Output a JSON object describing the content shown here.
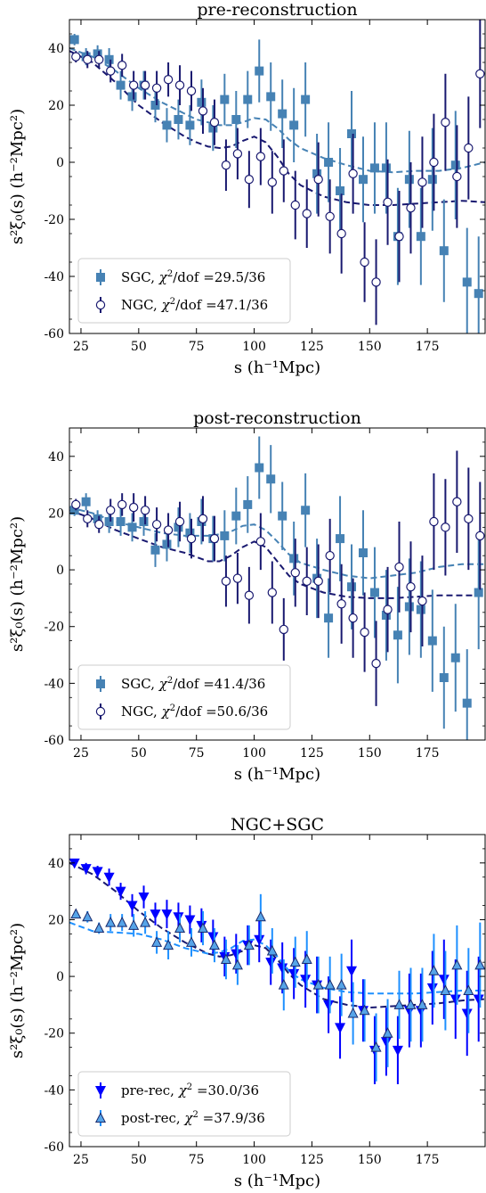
{
  "chart_data": [
    {
      "type": "scatter",
      "title": "pre-reconstruction",
      "xlabel": "s (h⁻¹Mpc)",
      "ylabel": "s²ξ₀(s) (h⁻²Mpc²)",
      "xlim": [
        20,
        200
      ],
      "ylim": [
        -60,
        50
      ],
      "xticks": [
        25,
        50,
        75,
        100,
        125,
        150,
        175
      ],
      "yticks": [
        -60,
        -40,
        -20,
        0,
        20,
        40
      ],
      "legend_position": "lower-left",
      "series": [
        {
          "name": "SGC",
          "label_tail": "29.5/36",
          "color": "#4682b4",
          "marker": "square",
          "fill": "#4682b4",
          "x": [
            22.5,
            27.5,
            32.5,
            37.5,
            42.5,
            47.5,
            52.5,
            57.5,
            62.5,
            67.5,
            72.5,
            77.5,
            82.5,
            87.5,
            92.5,
            97.5,
            102.5,
            107.5,
            112.5,
            117.5,
            122.5,
            127.5,
            132.5,
            137.5,
            142.5,
            147.5,
            152.5,
            157.5,
            162.5,
            167.5,
            172.5,
            177.5,
            182.5,
            187.5,
            192.5,
            197.5
          ],
          "y": [
            43,
            37,
            38,
            36,
            27,
            23,
            27,
            20,
            13,
            15,
            13,
            21,
            12,
            22,
            15,
            22,
            32,
            23,
            17,
            13,
            22,
            -4,
            0,
            -10,
            10,
            -6,
            -2,
            -2,
            -26,
            -6,
            -26,
            -6,
            -31,
            -1,
            -42,
            -46
          ],
          "err": [
            2,
            3,
            3,
            4,
            5,
            5,
            5,
            6,
            6,
            7,
            7,
            8,
            8,
            9,
            10,
            10,
            11,
            12,
            12,
            13,
            13,
            14,
            14,
            15,
            15,
            15,
            16,
            16,
            17,
            17,
            17,
            18,
            18,
            19,
            19,
            20
          ]
        },
        {
          "name": "NGC",
          "label_tail": "47.1/36",
          "color": "#191970",
          "marker": "circle",
          "fill": "#ffffff",
          "x": [
            22.5,
            27.5,
            32.5,
            37.5,
            42.5,
            47.5,
            52.5,
            57.5,
            62.5,
            67.5,
            72.5,
            77.5,
            82.5,
            87.5,
            92.5,
            97.5,
            102.5,
            107.5,
            112.5,
            117.5,
            122.5,
            127.5,
            132.5,
            137.5,
            142.5,
            147.5,
            152.5,
            157.5,
            162.5,
            167.5,
            172.5,
            177.5,
            182.5,
            187.5,
            192.5,
            197.5
          ],
          "y": [
            37,
            36,
            36,
            32,
            34,
            27,
            27,
            26,
            29,
            27,
            25,
            18,
            14,
            -1,
            3,
            -6,
            2,
            -7,
            -3,
            -15,
            -18,
            -6,
            -19,
            -25,
            -4,
            -35,
            -42,
            -14,
            -26,
            -16,
            -7,
            0,
            14,
            -5,
            5,
            31
          ],
          "err": [
            2,
            3,
            3,
            4,
            4,
            5,
            5,
            6,
            6,
            7,
            7,
            8,
            8,
            9,
            9,
            10,
            10,
            11,
            11,
            12,
            12,
            13,
            13,
            14,
            14,
            14,
            15,
            15,
            16,
            16,
            16,
            17,
            17,
            18,
            18,
            19
          ]
        }
      ],
      "fits": [
        {
          "name": "SGC model",
          "color": "#4682b4",
          "x": [
            20,
            30,
            40,
            50,
            60,
            70,
            75,
            80,
            85,
            90,
            95,
            100,
            105,
            110,
            115,
            120,
            130,
            140,
            150,
            160,
            170,
            180,
            190,
            200
          ],
          "y": [
            40,
            37,
            32,
            26,
            21,
            17,
            15,
            14,
            13,
            13,
            14,
            15.5,
            15,
            12,
            8,
            5,
            1.5,
            -1,
            -3,
            -3.5,
            -3,
            -3,
            -2,
            0
          ]
        },
        {
          "name": "NGC model",
          "color": "#191970",
          "x": [
            20,
            30,
            40,
            50,
            60,
            70,
            75,
            80,
            85,
            90,
            95,
            100,
            105,
            110,
            115,
            120,
            130,
            140,
            150,
            160,
            170,
            180,
            190,
            200
          ],
          "y": [
            39,
            35,
            28,
            20,
            14,
            9,
            7,
            5.5,
            5,
            5.5,
            7.5,
            9,
            7,
            2,
            -4,
            -8,
            -12,
            -14,
            -15,
            -15,
            -14.5,
            -14,
            -13.5,
            -14
          ]
        }
      ]
    },
    {
      "type": "scatter",
      "title": "post-reconstruction",
      "xlabel": "s (h⁻¹Mpc)",
      "ylabel": "s²ξ₀(s) (h⁻²Mpc²)",
      "xlim": [
        20,
        200
      ],
      "ylim": [
        -60,
        50
      ],
      "xticks": [
        25,
        50,
        75,
        100,
        125,
        150,
        175
      ],
      "yticks": [
        -60,
        -40,
        -20,
        0,
        20,
        40
      ],
      "legend_position": "lower-left",
      "series": [
        {
          "name": "SGC",
          "label_tail": "41.4/36",
          "color": "#4682b4",
          "marker": "square",
          "fill": "#4682b4",
          "x": [
            22.5,
            27.5,
            32.5,
            37.5,
            42.5,
            47.5,
            52.5,
            57.5,
            62.5,
            67.5,
            72.5,
            77.5,
            82.5,
            87.5,
            92.5,
            97.5,
            102.5,
            107.5,
            112.5,
            117.5,
            122.5,
            127.5,
            132.5,
            137.5,
            142.5,
            147.5,
            152.5,
            157.5,
            162.5,
            167.5,
            172.5,
            177.5,
            182.5,
            187.5,
            192.5,
            197.5
          ],
          "y": [
            21,
            24,
            18,
            17,
            17,
            15,
            17,
            7,
            9,
            15,
            13,
            17,
            11,
            12,
            19,
            23,
            36,
            32,
            19,
            4,
            21,
            -3,
            -17,
            11,
            -6,
            6,
            -8,
            -16,
            -23,
            -13,
            -14,
            -25,
            -38,
            -31,
            -47,
            -8
          ],
          "err": [
            2,
            3,
            3,
            4,
            5,
            5,
            5,
            6,
            6,
            7,
            7,
            8,
            8,
            9,
            10,
            10,
            11,
            12,
            12,
            13,
            13,
            14,
            14,
            15,
            15,
            15,
            16,
            16,
            17,
            17,
            17,
            18,
            18,
            19,
            19,
            20
          ]
        },
        {
          "name": "NGC",
          "label_tail": "50.6/36",
          "color": "#191970",
          "marker": "circle",
          "fill": "#ffffff",
          "x": [
            22.5,
            27.5,
            32.5,
            37.5,
            42.5,
            47.5,
            52.5,
            57.5,
            62.5,
            67.5,
            72.5,
            77.5,
            82.5,
            87.5,
            92.5,
            97.5,
            102.5,
            107.5,
            112.5,
            117.5,
            122.5,
            127.5,
            132.5,
            137.5,
            142.5,
            147.5,
            152.5,
            157.5,
            162.5,
            167.5,
            172.5,
            177.5,
            182.5,
            187.5,
            192.5,
            197.5
          ],
          "y": [
            23,
            18,
            16,
            21,
            23,
            22,
            21,
            16,
            14,
            17,
            11,
            18,
            11,
            -4,
            -3,
            -9,
            10,
            -8,
            -21,
            -1,
            -4,
            -4,
            5,
            -12,
            -17,
            -22,
            -33,
            -14,
            1,
            -6,
            -11,
            17,
            15,
            24,
            18,
            12
          ],
          "err": [
            2,
            3,
            3,
            4,
            4,
            5,
            5,
            6,
            6,
            7,
            7,
            8,
            8,
            9,
            9,
            10,
            10,
            11,
            11,
            12,
            12,
            13,
            13,
            14,
            14,
            14,
            15,
            15,
            16,
            16,
            16,
            17,
            17,
            18,
            18,
            19
          ]
        }
      ],
      "fits": [
        {
          "name": "SGC model",
          "color": "#4682b4",
          "x": [
            20,
            30,
            40,
            50,
            60,
            70,
            80,
            85,
            90,
            95,
            100,
            105,
            110,
            115,
            120,
            130,
            140,
            150,
            160,
            170,
            180,
            190,
            200
          ],
          "y": [
            22,
            20,
            17,
            15,
            13,
            12,
            12,
            12.5,
            13.5,
            15.5,
            16,
            14,
            10,
            5.5,
            2.5,
            0,
            -2,
            -3,
            -2,
            -1,
            1,
            2,
            2
          ]
        },
        {
          "name": "NGC model",
          "color": "#191970",
          "x": [
            20,
            30,
            40,
            50,
            60,
            70,
            80,
            85,
            90,
            95,
            100,
            105,
            110,
            115,
            120,
            130,
            140,
            150,
            160,
            170,
            180,
            190,
            200
          ],
          "y": [
            21,
            18,
            14,
            11,
            8,
            6,
            3,
            3,
            5,
            8,
            10,
            8,
            3,
            -2,
            -5,
            -8,
            -9.5,
            -10,
            -10,
            -9.5,
            -9,
            -9,
            -9
          ]
        }
      ]
    },
    {
      "type": "scatter",
      "title": "NGC+SGC",
      "xlabel": "s (h⁻¹Mpc)",
      "ylabel": "s²ξ₀(s) (h⁻²Mpc²)",
      "xlim": [
        20,
        200
      ],
      "ylim": [
        -60,
        50
      ],
      "xticks": [
        25,
        50,
        75,
        100,
        125,
        150,
        175
      ],
      "yticks": [
        -60,
        -40,
        -20,
        0,
        20,
        40
      ],
      "legend_position": "lower-left",
      "series": [
        {
          "name": "pre-rec",
          "label_tail": "30.0/36",
          "color": "#0000ff",
          "marker": "triangle-down",
          "fill": "#0000ff",
          "stroke": "#0000ff",
          "x": [
            22.5,
            27.5,
            32.5,
            37.5,
            42.5,
            47.5,
            52.5,
            57.5,
            62.5,
            67.5,
            72.5,
            77.5,
            82.5,
            87.5,
            92.5,
            97.5,
            102.5,
            107.5,
            112.5,
            117.5,
            122.5,
            127.5,
            132.5,
            137.5,
            142.5,
            147.5,
            152.5,
            157.5,
            162.5,
            167.5,
            172.5,
            177.5,
            182.5,
            187.5,
            192.5,
            197.5
          ],
          "y": [
            40,
            38,
            37,
            35,
            30,
            25,
            28,
            22,
            22,
            21,
            20,
            18,
            14,
            7,
            8,
            11,
            13,
            5,
            3,
            1,
            -1,
            -3,
            -10,
            -18,
            2,
            -12,
            -26,
            -23,
            -26,
            -12,
            -12,
            -4,
            -1,
            -8,
            -13,
            -8
          ],
          "err": [
            1.5,
            2,
            2,
            3,
            3,
            4,
            4,
            4,
            5,
            5,
            5,
            6,
            6,
            7,
            7,
            7,
            8,
            8,
            9,
            9,
            10,
            10,
            10,
            11,
            11,
            11,
            12,
            12,
            12,
            13,
            13,
            13,
            14,
            14,
            15,
            15
          ]
        },
        {
          "name": "post-rec",
          "label_tail": "37.9/36",
          "color": "#1e90ff",
          "marker": "triangle-up",
          "fill": "#56a4e8",
          "stroke": "#1a2a6c",
          "x": [
            22.5,
            27.5,
            32.5,
            37.5,
            42.5,
            47.5,
            52.5,
            57.5,
            62.5,
            67.5,
            72.5,
            77.5,
            82.5,
            87.5,
            92.5,
            97.5,
            102.5,
            107.5,
            112.5,
            117.5,
            122.5,
            127.5,
            132.5,
            137.5,
            142.5,
            147.5,
            152.5,
            157.5,
            162.5,
            167.5,
            172.5,
            177.5,
            182.5,
            187.5,
            192.5,
            197.5
          ],
          "y": [
            22,
            21,
            17,
            19,
            19,
            18,
            19,
            12,
            11,
            17,
            12,
            17,
            11,
            6,
            4,
            11,
            21,
            9,
            -3,
            5,
            6,
            -3,
            -3,
            -3,
            -13,
            -12,
            -25,
            -20,
            -10,
            -10,
            -10,
            2,
            -5,
            4,
            -5,
            4
          ],
          "err": [
            1.5,
            2,
            2,
            3,
            3,
            4,
            4,
            4,
            5,
            5,
            5,
            6,
            6,
            7,
            7,
            7,
            8,
            8,
            9,
            9,
            10,
            10,
            10,
            11,
            11,
            11,
            12,
            12,
            12,
            13,
            13,
            13,
            14,
            14,
            15,
            15
          ]
        }
      ],
      "fits": [
        {
          "name": "pre-rec model",
          "color": "#191970",
          "x": [
            20,
            30,
            40,
            50,
            60,
            70,
            75,
            80,
            85,
            90,
            95,
            100,
            105,
            110,
            115,
            120,
            130,
            140,
            150,
            160,
            170,
            180,
            190,
            200
          ],
          "y": [
            40,
            36,
            30,
            23,
            17,
            12,
            10,
            8,
            7,
            7.5,
            9,
            11,
            10,
            6,
            1,
            -3,
            -8,
            -10,
            -11,
            -10.5,
            -10,
            -9.5,
            -8.5,
            -8
          ]
        },
        {
          "name": "post-rec model",
          "color": "#1e90ff",
          "x": [
            20,
            30,
            40,
            50,
            60,
            70,
            80,
            85,
            90,
            95,
            100,
            105,
            110,
            115,
            120,
            130,
            140,
            150,
            160,
            170,
            180,
            190,
            200
          ],
          "y": [
            19,
            16,
            15.5,
            15,
            13,
            10,
            8,
            8.5,
            10,
            12.5,
            13,
            11,
            7,
            2,
            -1,
            -4,
            -5.5,
            -6,
            -6,
            -6,
            -5.5,
            -5,
            -5
          ]
        }
      ]
    }
  ]
}
